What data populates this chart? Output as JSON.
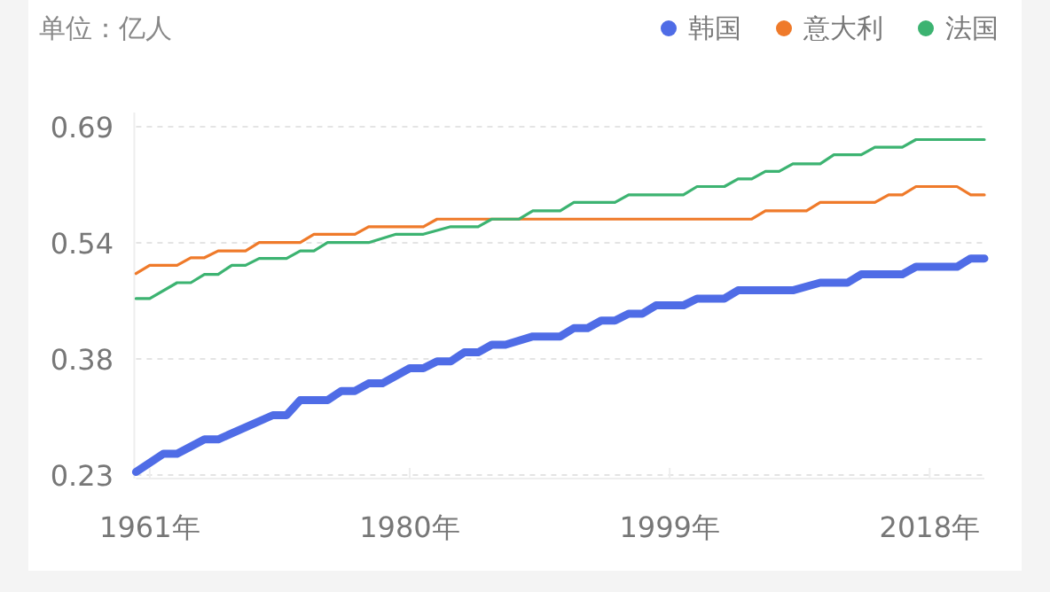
{
  "chart_data": {
    "type": "line",
    "ylabel": "单位：亿人",
    "legend": "top right",
    "grid": "y",
    "line_style": "solid",
    "marker": "none",
    "xlim": [
      1960,
      2022
    ],
    "ylim": [
      0.23,
      0.69
    ],
    "xticks": [
      {
        "value": 1961,
        "label": "1961年"
      },
      {
        "value": 1980,
        "label": "1980年"
      },
      {
        "value": 1999,
        "label": "1999年"
      },
      {
        "value": 2018,
        "label": "2018年"
      }
    ],
    "yticks": [
      {
        "value": 0.23,
        "label": "0.23"
      },
      {
        "value": 0.3833,
        "label": "0.38"
      },
      {
        "value": 0.5367,
        "label": "0.54"
      },
      {
        "value": 0.69,
        "label": "0.69"
      }
    ],
    "series": [
      {
        "name": "韩国",
        "color": "#4f6ce6",
        "x": [
          1960,
          1962,
          1963,
          1965,
          1966,
          1970,
          1971,
          1972,
          1974,
          1975,
          1976,
          1977,
          1978,
          1980,
          1981,
          1982,
          1983,
          1984,
          1985,
          1986,
          1987,
          1989,
          1991,
          1992,
          1993,
          1994,
          1995,
          1996,
          1997,
          1998,
          2000,
          2001,
          2003,
          2004,
          2008,
          2010,
          2012,
          2013,
          2016,
          2017,
          2020,
          2021,
          2022
        ],
        "values": [
          0.234,
          0.258,
          0.258,
          0.277,
          0.277,
          0.309,
          0.309,
          0.329,
          0.329,
          0.341,
          0.341,
          0.351,
          0.351,
          0.371,
          0.371,
          0.38,
          0.38,
          0.392,
          0.392,
          0.402,
          0.402,
          0.413,
          0.413,
          0.424,
          0.424,
          0.434,
          0.434,
          0.443,
          0.443,
          0.454,
          0.454,
          0.463,
          0.463,
          0.474,
          0.474,
          0.484,
          0.484,
          0.495,
          0.495,
          0.505,
          0.505,
          0.516,
          0.516
        ]
      },
      {
        "name": "意大利",
        "color": "#ef7a2a",
        "x": [
          1960,
          1961,
          1963,
          1964,
          1965,
          1966,
          1968,
          1969,
          1972,
          1973,
          1976,
          1977,
          1981,
          1982,
          2005,
          2006,
          2009,
          2010,
          2014,
          2015,
          2016,
          2017,
          2020,
          2021,
          2022
        ],
        "values": [
          0.496,
          0.507,
          0.507,
          0.517,
          0.517,
          0.526,
          0.526,
          0.537,
          0.537,
          0.548,
          0.548,
          0.558,
          0.558,
          0.568,
          0.568,
          0.579,
          0.579,
          0.59,
          0.59,
          0.6,
          0.6,
          0.611,
          0.611,
          0.6,
          0.6
        ]
      },
      {
        "name": "法国",
        "color": "#3cb371",
        "x": [
          1960,
          1961,
          1963,
          1964,
          1965,
          1966,
          1967,
          1968,
          1969,
          1971,
          1972,
          1973,
          1974,
          1977,
          1979,
          1981,
          1983,
          1985,
          1986,
          1988,
          1989,
          1991,
          1992,
          1995,
          1996,
          2000,
          2001,
          2003,
          2004,
          2005,
          2006,
          2007,
          2008,
          2010,
          2011,
          2013,
          2014,
          2016,
          2017,
          2022
        ],
        "values": [
          0.463,
          0.463,
          0.484,
          0.484,
          0.495,
          0.495,
          0.507,
          0.507,
          0.516,
          0.516,
          0.526,
          0.526,
          0.537,
          0.537,
          0.548,
          0.548,
          0.558,
          0.558,
          0.568,
          0.568,
          0.579,
          0.579,
          0.59,
          0.59,
          0.6,
          0.6,
          0.611,
          0.611,
          0.621,
          0.621,
          0.631,
          0.631,
          0.641,
          0.641,
          0.653,
          0.653,
          0.663,
          0.663,
          0.673,
          0.673
        ]
      }
    ]
  }
}
